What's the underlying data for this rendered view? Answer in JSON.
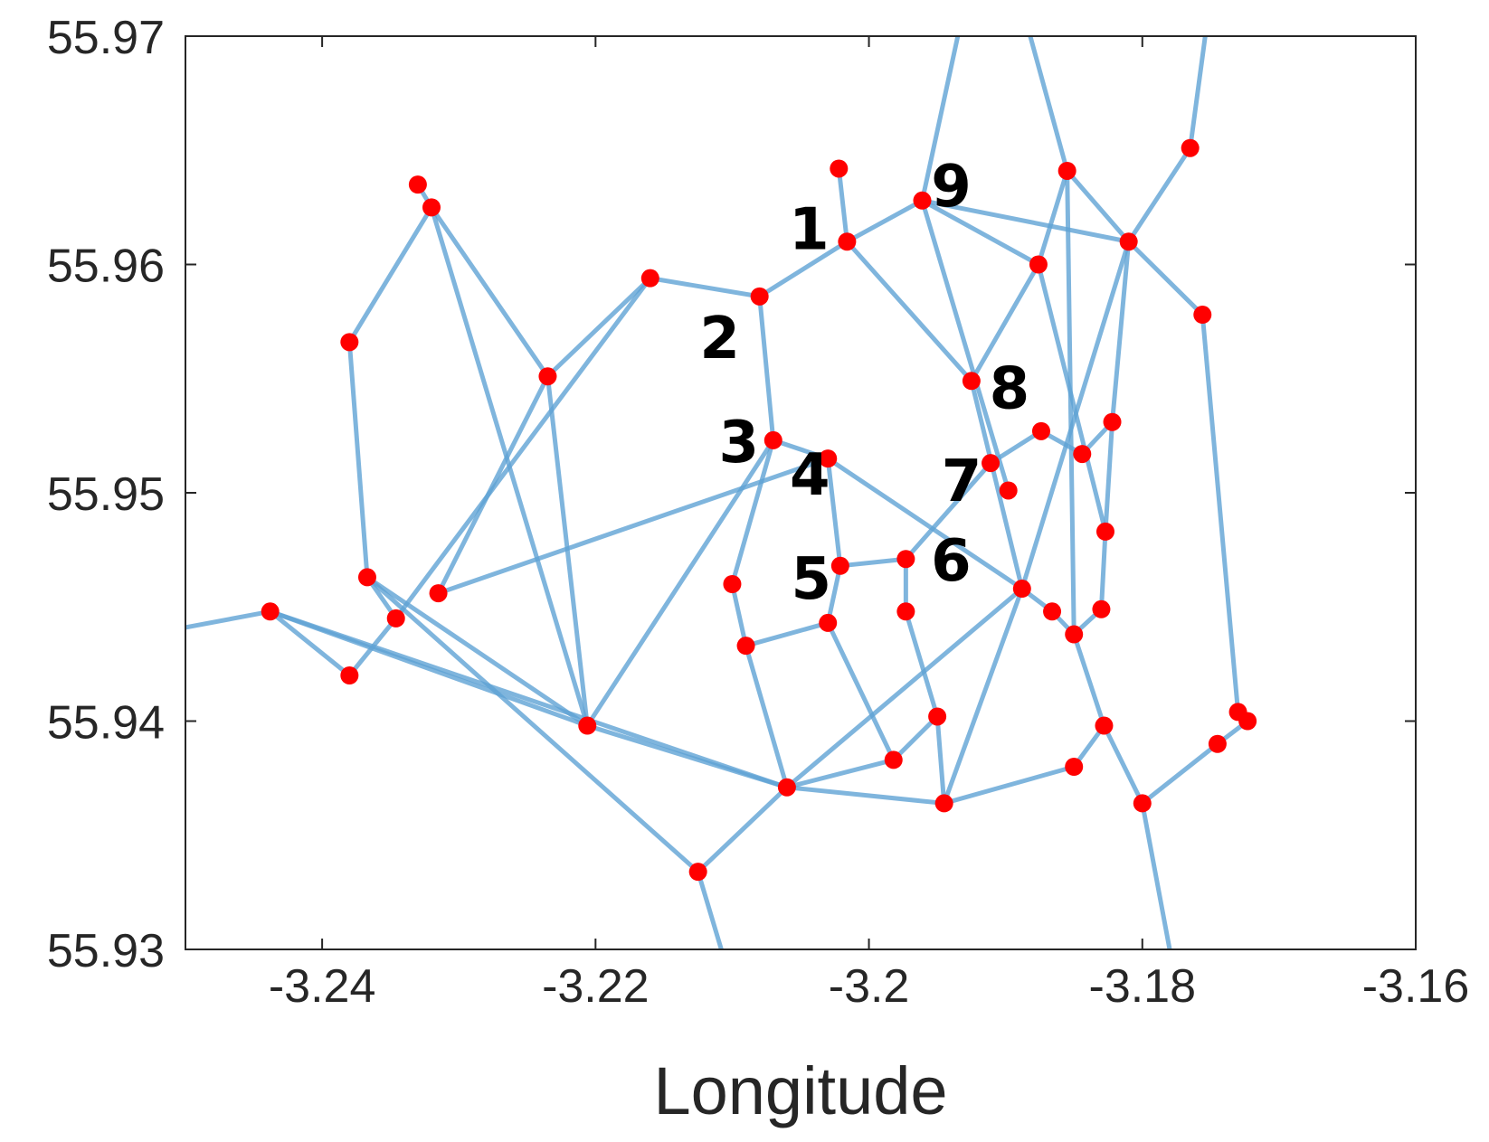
{
  "chart_data": {
    "type": "scatter",
    "title": "",
    "xlabel": "Longitude",
    "ylabel": "",
    "xlim": [
      -3.25,
      -3.16
    ],
    "ylim": [
      55.93,
      55.97
    ],
    "xticks": [
      -3.24,
      -3.22,
      -3.2,
      -3.18,
      -3.16
    ],
    "yticks": [
      55.93,
      55.94,
      55.95,
      55.96,
      55.97
    ],
    "xtick_labels": [
      "-3.24",
      "-3.22",
      "-3.2",
      "-3.18",
      "-3.16"
    ],
    "ytick_labels": [
      "55.93",
      "55.94",
      "55.95",
      "55.96",
      "55.97"
    ],
    "grid": false,
    "colors": {
      "edge": "#5fa3d4",
      "node": "#ff0000",
      "axis": "#262626"
    },
    "nodes": [
      {
        "id": "n1",
        "x": -3.2016,
        "y": 55.961,
        "label": "1"
      },
      {
        "id": "n2",
        "x": -3.208,
        "y": 55.9586,
        "label": "2"
      },
      {
        "id": "n3",
        "x": -3.207,
        "y": 55.9523,
        "label": "3"
      },
      {
        "id": "n4",
        "x": -3.203,
        "y": 55.9515,
        "label": "4"
      },
      {
        "id": "n5",
        "x": -3.2021,
        "y": 55.9468,
        "label": "5"
      },
      {
        "id": "n6",
        "x": -3.1973,
        "y": 55.9471,
        "label": "6"
      },
      {
        "id": "n7",
        "x": -3.1911,
        "y": 55.9513,
        "label": "7"
      },
      {
        "id": "n8",
        "x": -3.1925,
        "y": 55.9549,
        "label": "8"
      },
      {
        "id": "n9",
        "x": -3.1961,
        "y": 55.9628,
        "label": "9"
      },
      {
        "id": "a1",
        "x": -3.2022,
        "y": 55.9642
      },
      {
        "id": "a2",
        "x": -3.233,
        "y": 55.9635
      },
      {
        "id": "a3",
        "x": -3.232,
        "y": 55.9625
      },
      {
        "id": "a4",
        "x": -3.216,
        "y": 55.9594
      },
      {
        "id": "a5",
        "x": -3.238,
        "y": 55.9566
      },
      {
        "id": "a6",
        "x": -3.2235,
        "y": 55.9551
      },
      {
        "id": "a7",
        "x": -3.2367,
        "y": 55.9463
      },
      {
        "id": "a8",
        "x": -3.2315,
        "y": 55.9456
      },
      {
        "id": "a9",
        "x": -3.2346,
        "y": 55.9445
      },
      {
        "id": "a10",
        "x": -3.2438,
        "y": 55.9448
      },
      {
        "id": "a11",
        "x": -3.238,
        "y": 55.942
      },
      {
        "id": "a12",
        "x": -3.2206,
        "y": 55.9398
      },
      {
        "id": "a13",
        "x": -3.21,
        "y": 55.946
      },
      {
        "id": "a14",
        "x": -3.209,
        "y": 55.9433
      },
      {
        "id": "a15",
        "x": -3.203,
        "y": 55.9443
      },
      {
        "id": "a16",
        "x": -3.206,
        "y": 55.9371
      },
      {
        "id": "a17",
        "x": -3.2125,
        "y": 55.9334
      },
      {
        "id": "a18",
        "x": -3.1973,
        "y": 55.9448
      },
      {
        "id": "a19",
        "x": -3.195,
        "y": 55.9402
      },
      {
        "id": "a20",
        "x": -3.1982,
        "y": 55.9383
      },
      {
        "id": "a21",
        "x": -3.1945,
        "y": 55.9364
      },
      {
        "id": "a22",
        "x": -3.1898,
        "y": 55.9501
      },
      {
        "id": "a23",
        "x": -3.1888,
        "y": 55.9458
      },
      {
        "id": "a24",
        "x": -3.1874,
        "y": 55.9527
      },
      {
        "id": "a25",
        "x": -3.1866,
        "y": 55.9448
      },
      {
        "id": "a26",
        "x": -3.185,
        "y": 55.9438
      },
      {
        "id": "a27",
        "x": -3.1844,
        "y": 55.9517
      },
      {
        "id": "a28",
        "x": -3.183,
        "y": 55.9449
      },
      {
        "id": "a29",
        "x": -3.1822,
        "y": 55.9531
      },
      {
        "id": "a30",
        "x": -3.1827,
        "y": 55.9483
      },
      {
        "id": "a31",
        "x": -3.1828,
        "y": 55.9398
      },
      {
        "id": "a32",
        "x": -3.185,
        "y": 55.938
      },
      {
        "id": "a33",
        "x": -3.18,
        "y": 55.9364
      },
      {
        "id": "a34",
        "x": -3.181,
        "y": 55.961
      },
      {
        "id": "a35",
        "x": -3.1876,
        "y": 55.96
      },
      {
        "id": "a36",
        "x": -3.1855,
        "y": 55.9641
      },
      {
        "id": "a37",
        "x": -3.1765,
        "y": 55.9651
      },
      {
        "id": "a38",
        "x": -3.1756,
        "y": 55.9578
      },
      {
        "id": "a39",
        "x": -3.173,
        "y": 55.9404
      },
      {
        "id": "a40",
        "x": -3.1723,
        "y": 55.94
      },
      {
        "id": "a41",
        "x": -3.1745,
        "y": 55.939
      }
    ],
    "edges": [
      [
        "n1",
        "a1"
      ],
      [
        "n1",
        "n2"
      ],
      [
        "n1",
        "n9"
      ],
      [
        "n1",
        "n8"
      ],
      [
        "n2",
        "a4"
      ],
      [
        "n2",
        "n3"
      ],
      [
        "n3",
        "n4"
      ],
      [
        "n3",
        "a12"
      ],
      [
        "n3",
        "a13"
      ],
      [
        "n4",
        "n5"
      ],
      [
        "n4",
        "a8"
      ],
      [
        "n4",
        "a23"
      ],
      [
        "n5",
        "a15"
      ],
      [
        "n5",
        "n6"
      ],
      [
        "n6",
        "n7"
      ],
      [
        "n6",
        "a18"
      ],
      [
        "n7",
        "a24"
      ],
      [
        "n8",
        "a35"
      ],
      [
        "n8",
        "a23"
      ],
      [
        "n9",
        "a34"
      ],
      [
        "n9",
        "a35"
      ],
      [
        "n9",
        "a22"
      ],
      [
        "a2",
        "a3"
      ],
      [
        "a3",
        "a5"
      ],
      [
        "a3",
        "a6"
      ],
      [
        "a3",
        "a12"
      ],
      [
        "a5",
        "a7"
      ],
      [
        "a4",
        "a6"
      ],
      [
        "a4",
        "a9"
      ],
      [
        "a6",
        "a8"
      ],
      [
        "a6",
        "a12"
      ],
      [
        "a7",
        "a9"
      ],
      [
        "a7",
        "a12"
      ],
      [
        "a7",
        "a17"
      ],
      [
        "a9",
        "a11"
      ],
      [
        "a10",
        "a11"
      ],
      [
        "a10",
        "a12"
      ],
      [
        "a10",
        "a16"
      ],
      [
        "a12",
        "a16"
      ],
      [
        "a13",
        "a14"
      ],
      [
        "a14",
        "a15"
      ],
      [
        "a14",
        "a16"
      ],
      [
        "a15",
        "a20"
      ],
      [
        "a16",
        "a17"
      ],
      [
        "a16",
        "a20"
      ],
      [
        "a16",
        "a21"
      ],
      [
        "a16",
        "a23"
      ],
      [
        "a20",
        "a19"
      ],
      [
        "a18",
        "a19"
      ],
      [
        "a19",
        "a21"
      ],
      [
        "a21",
        "a23"
      ],
      [
        "a21",
        "a32"
      ],
      [
        "a23",
        "a25"
      ],
      [
        "a23",
        "a34"
      ],
      [
        "a25",
        "a26"
      ],
      [
        "a26",
        "a28"
      ],
      [
        "a26",
        "a31"
      ],
      [
        "a28",
        "a30"
      ],
      [
        "a30",
        "a29"
      ],
      [
        "a29",
        "a27"
      ],
      [
        "a27",
        "a24"
      ],
      [
        "a30",
        "a35"
      ],
      [
        "a29",
        "a34"
      ],
      [
        "a35",
        "a36"
      ],
      [
        "a36",
        "a34"
      ],
      [
        "a34",
        "a37"
      ],
      [
        "a34",
        "a38"
      ],
      [
        "a38",
        "a39"
      ],
      [
        "a39",
        "a40"
      ],
      [
        "a40",
        "a41"
      ],
      [
        "a41",
        "a33"
      ],
      [
        "a31",
        "a32"
      ],
      [
        "a31",
        "a33"
      ],
      [
        "a26",
        "a36"
      ]
    ],
    "outgoing_edges": [
      {
        "from": "a10",
        "to": [
          -3.25,
          55.9441
        ]
      },
      {
        "from": "n9",
        "to": [
          -3.1935,
          55.97
        ]
      },
      {
        "from": "a36",
        "to": [
          -3.1882,
          55.97
        ]
      },
      {
        "from": "a37",
        "to": [
          -3.1754,
          55.97
        ]
      },
      {
        "from": "a17",
        "to": [
          -3.2108,
          55.93
        ]
      },
      {
        "from": "a33",
        "to": [
          -3.178,
          55.93
        ]
      }
    ]
  }
}
